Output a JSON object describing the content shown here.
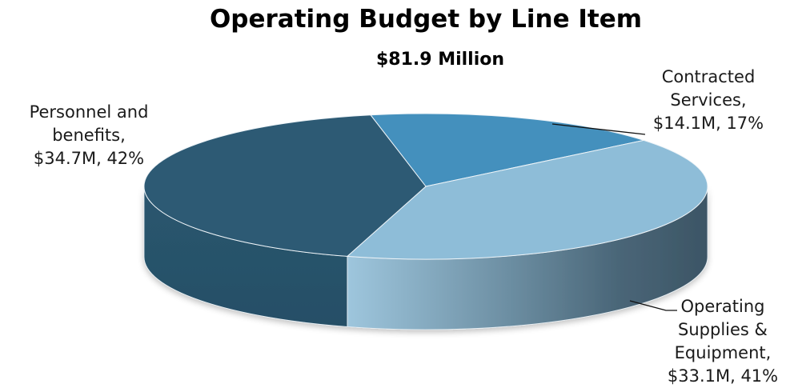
{
  "chart_data": {
    "type": "pie",
    "title": "Operating Budget by Line Item",
    "subtitle": "$81.9 Million",
    "three_d": true,
    "slices": [
      {
        "name": "Contracted Services",
        "value": 14.1,
        "percent": 17,
        "color": "#4490BD",
        "label_lines": [
          "Contracted",
          "Services,",
          "$14.1M, 17%"
        ]
      },
      {
        "name": "Operating Supplies & Equipment",
        "value": 33.1,
        "percent": 41,
        "color": "#8EBDD8",
        "label_lines": [
          "Operating",
          "Supplies &",
          "Equipment,",
          "$33.1M, 41%"
        ]
      },
      {
        "name": "Personnel and benefits",
        "value": 34.7,
        "percent": 42,
        "color": "#2D5A74",
        "label_lines": [
          "Personnel and",
          "benefits,",
          "$34.7M, 42%"
        ]
      }
    ],
    "legend": "none"
  }
}
